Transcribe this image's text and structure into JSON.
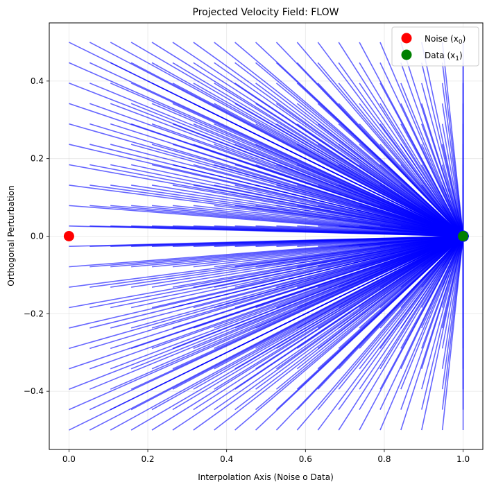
{
  "chart_data": {
    "type": "quiver",
    "title": "Projected Velocity Field: FLOW",
    "xlabel": "Interpolation Axis (Noise o Data)",
    "ylabel": "Orthogonal Perturbation",
    "xlim": [
      -0.05,
      1.05
    ],
    "ylim": [
      -0.55,
      0.55
    ],
    "x_ticks": [
      0.0,
      0.2,
      0.4,
      0.6,
      0.8,
      1.0
    ],
    "x_tick_labels": [
      "0.0",
      "0.2",
      "0.4",
      "0.6",
      "0.8",
      "1.0"
    ],
    "y_ticks": [
      -0.4,
      -0.2,
      0.0,
      0.2,
      0.4
    ],
    "y_tick_labels": [
      "−0.4",
      "−0.2",
      "0.0",
      "0.2",
      "0.4"
    ],
    "grid": true,
    "legend_position": "top-right",
    "field": {
      "x_range": [
        0.0,
        1.0
      ],
      "x_count": 20,
      "y_range": [
        -0.5,
        0.5
      ],
      "y_count": 20,
      "target": [
        1.0,
        0.0
      ],
      "color": "#0000ff"
    },
    "points": [
      {
        "name": "Noise",
        "subscript": "0",
        "x": 0.0,
        "y": 0.0,
        "color": "#ff0000"
      },
      {
        "name": "Data",
        "subscript": "1",
        "x": 1.0,
        "y": 0.0,
        "color": "#008000"
      }
    ],
    "legend": [
      {
        "label": "Noise (x",
        "sub": "0",
        "close": ")",
        "color": "#ff0000"
      },
      {
        "label": "Data (x",
        "sub": "1",
        "close": ")",
        "color": "#008000"
      }
    ]
  }
}
